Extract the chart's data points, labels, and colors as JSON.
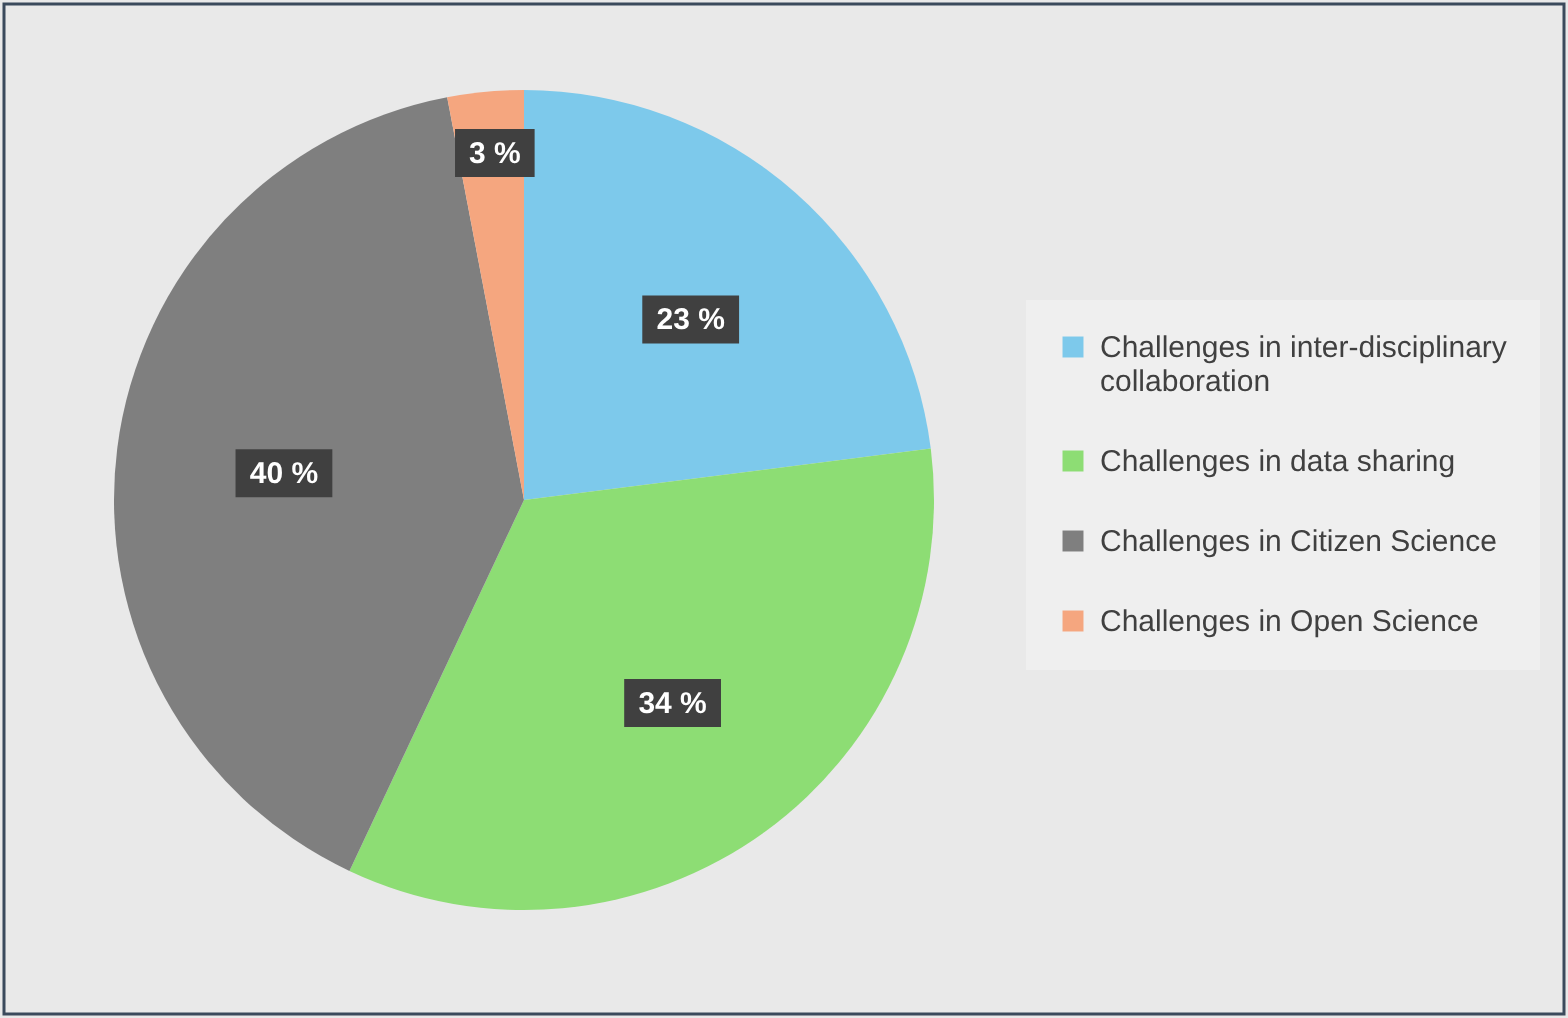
{
  "chart_data": {
    "type": "pie",
    "categories": [
      "Challenges in inter-disciplinary collaboration",
      "Challenges in data sharing",
      "Challenges in Citizen Science",
      "Challenges in Open Science"
    ],
    "values": [
      23,
      34,
      40,
      3
    ],
    "colors": [
      "#7dc9eb",
      "#8ddd74",
      "#7f7f7f",
      "#f5a67f"
    ],
    "value_labels": [
      "23 %",
      "34 %",
      "40 %",
      "3 %"
    ],
    "legend": "right"
  }
}
